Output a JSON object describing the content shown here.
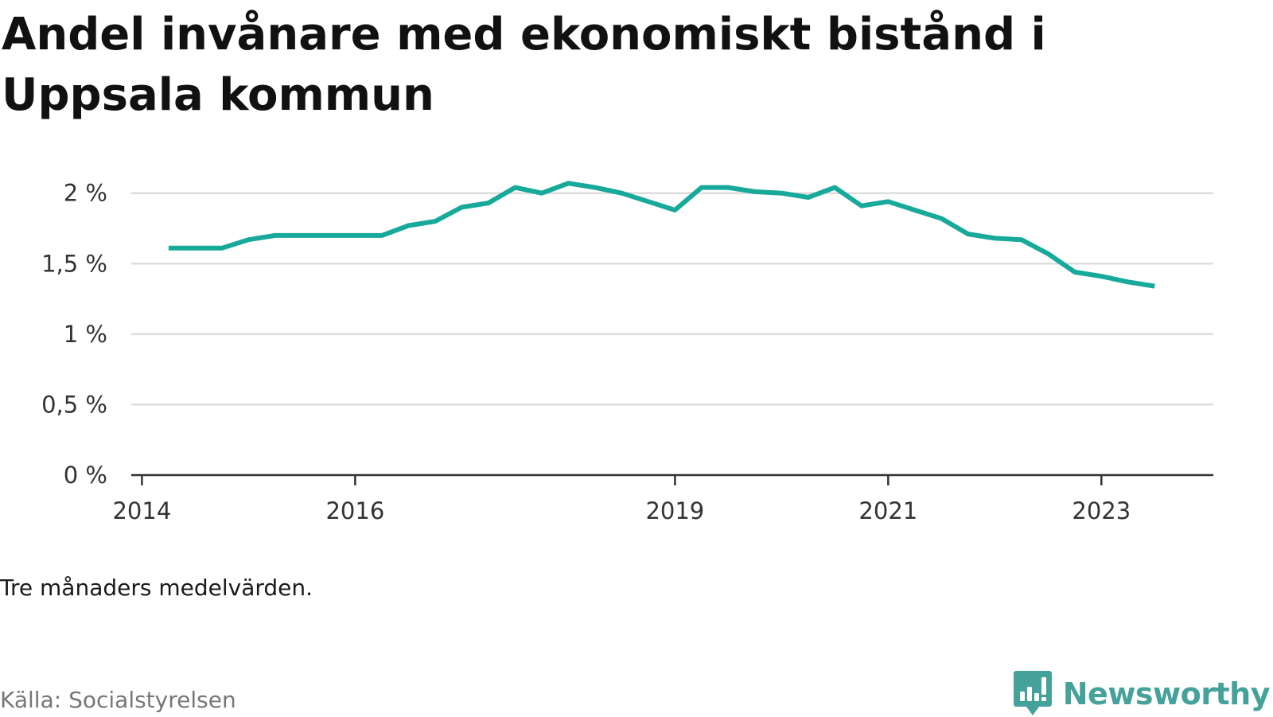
{
  "page": {
    "title": "Andel invånare med ekonomiskt bistånd i Uppsala kommun",
    "note": "Tre månaders medelvärden.",
    "source": "Källa: Socialstyrelsen",
    "brand": "Newsworthy"
  },
  "colors": {
    "line": "#17A99A",
    "brand": "#45A29A",
    "grid": "#DDDDDD",
    "axis": "#333333"
  },
  "chart_data": {
    "type": "line",
    "title": "Andel invånare med ekonomiskt bistånd i Uppsala kommun",
    "xlabel": "",
    "ylabel": "",
    "xlim": [
      2013.9,
      2024.05
    ],
    "ylim": [
      0,
      2.1
    ],
    "grid": true,
    "x_ticks": [
      {
        "value": 2014,
        "label": "2014"
      },
      {
        "value": 2016,
        "label": "2016"
      },
      {
        "value": 2019,
        "label": "2019"
      },
      {
        "value": 2021,
        "label": "2021"
      },
      {
        "value": 2023,
        "label": "2023"
      }
    ],
    "y_ticks": [
      {
        "value": 0,
        "label": "0 %"
      },
      {
        "value": 0.5,
        "label": "0,5 %"
      },
      {
        "value": 1,
        "label": "1 %"
      },
      {
        "value": 1.5,
        "label": "1,5 %"
      },
      {
        "value": 2,
        "label": "2 %"
      }
    ],
    "series": [
      {
        "name": "",
        "x": [
          2014.25,
          2014.5,
          2014.75,
          2015.0,
          2015.25,
          2015.5,
          2015.75,
          2016.0,
          2016.25,
          2016.5,
          2016.75,
          2017.0,
          2017.25,
          2017.5,
          2017.75,
          2018.0,
          2018.25,
          2018.5,
          2018.75,
          2019.0,
          2019.25,
          2019.5,
          2019.75,
          2020.0,
          2020.25,
          2020.5,
          2020.75,
          2021.0,
          2021.25,
          2021.5,
          2021.75,
          2022.0,
          2022.25,
          2022.5,
          2022.75,
          2023.0,
          2023.25,
          2023.5
        ],
        "values": [
          1.61,
          1.61,
          1.61,
          1.67,
          1.7,
          1.7,
          1.7,
          1.7,
          1.7,
          1.77,
          1.8,
          1.9,
          1.93,
          2.04,
          2.0,
          2.07,
          2.04,
          2.0,
          1.94,
          1.88,
          2.04,
          2.04,
          2.01,
          2.0,
          1.97,
          2.04,
          1.91,
          1.94,
          1.88,
          1.82,
          1.71,
          1.68,
          1.67,
          1.57,
          1.44,
          1.41,
          1.37,
          1.34
        ]
      }
    ]
  }
}
